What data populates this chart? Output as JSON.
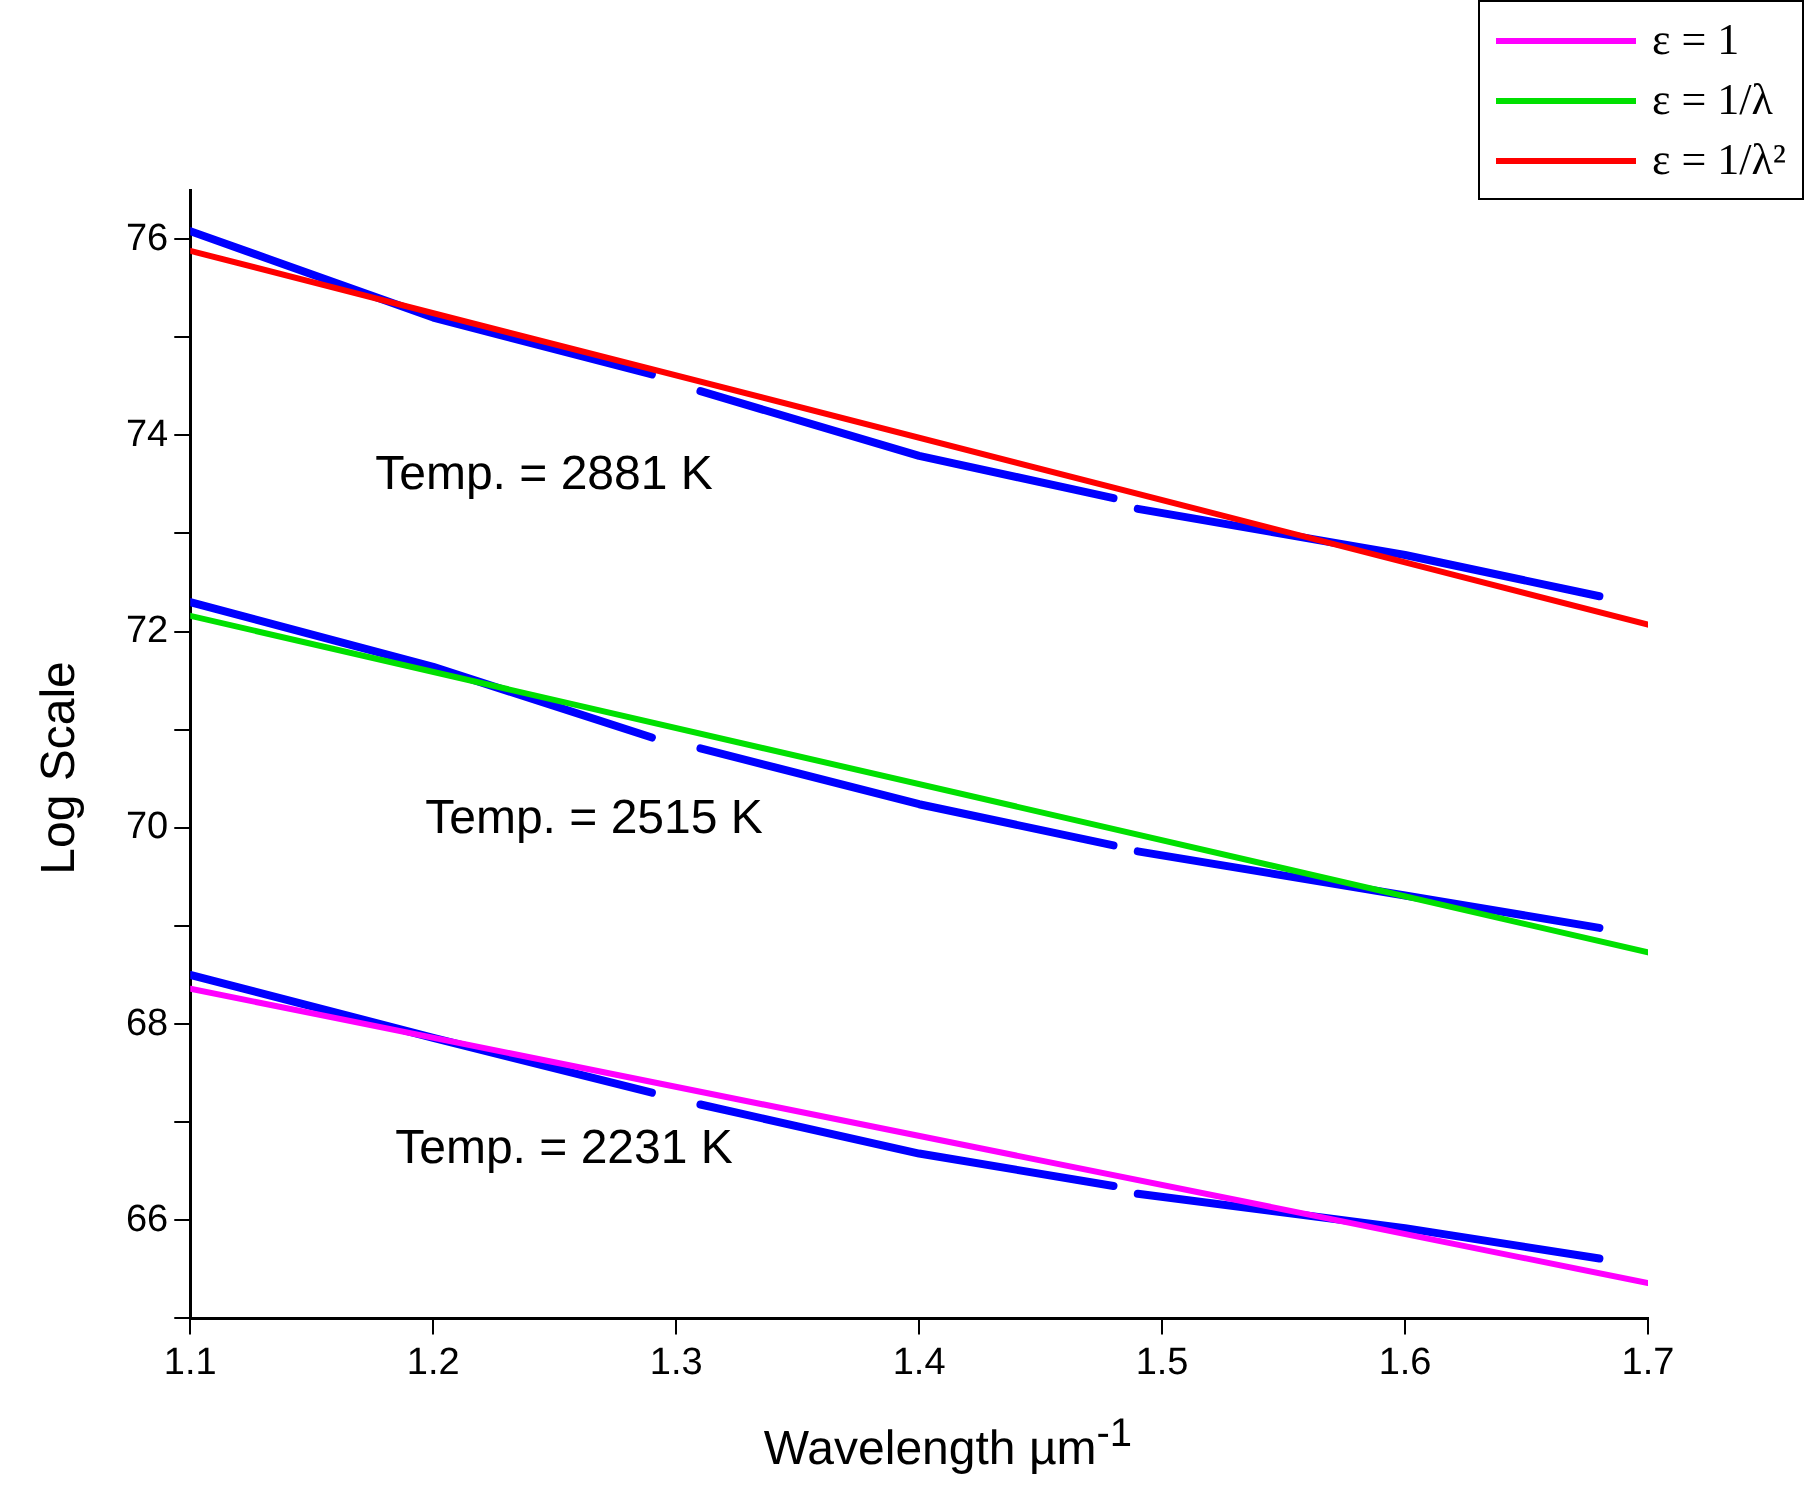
{
  "chart_data": {
    "type": "line",
    "xlabel": "Wavelength µm$^{-1}$",
    "ylabel": "Log Scale",
    "xlim": [
      1.1,
      1.7
    ],
    "xticks": [
      1.1,
      1.2,
      1.3,
      1.4,
      1.5,
      1.6,
      1.7
    ],
    "ylim": [
      65,
      76.5
    ],
    "yticks": [
      {
        "value": 65,
        "label": null
      },
      66,
      {
        "value": 67,
        "label": null
      },
      68,
      {
        "value": 69,
        "label": null
      },
      70,
      {
        "value": 71,
        "label": null
      },
      72,
      {
        "value": 73,
        "label": null
      },
      74,
      {
        "value": 75,
        "label": null
      },
      76
    ],
    "grid": false,
    "legend": "top right",
    "marker": "none",
    "line_style": "solid",
    "series": [
      {
        "name": "ε = 1",
        "color": "#ff00ff",
        "x": [
          1.1,
          1.7
        ],
        "values": [
          68.36,
          65.36
        ]
      },
      {
        "name": "ε = 1/λ",
        "color": "#00e000",
        "x": [
          1.1,
          1.7
        ],
        "values": [
          72.16,
          68.73
        ]
      },
      {
        "name": "ε = 1/λ²",
        "color": "#ff0000",
        "x": [
          1.1,
          1.7
        ],
        "values": [
          75.88,
          72.07
        ]
      },
      {
        "color": "#0000ff",
        "x": [
          1.1,
          1.2,
          1.29,
          1.3,
          1.31,
          1.4,
          1.48,
          1.485,
          1.49,
          1.6,
          1.68
        ],
        "values": [
          76.08,
          75.2,
          74.62,
          null,
          74.45,
          73.79,
          73.36,
          null,
          73.25,
          72.78,
          72.36
        ]
      },
      {
        "color": "#0000ff",
        "x": [
          1.1,
          1.2,
          1.29,
          1.3,
          1.31,
          1.4,
          1.48,
          1.485,
          1.49,
          1.6,
          1.68
        ],
        "values": [
          72.3,
          71.64,
          70.92,
          null,
          70.81,
          70.24,
          69.82,
          null,
          69.76,
          69.31,
          68.98
        ]
      },
      {
        "color": "#0000ff",
        "x": [
          1.1,
          1.2,
          1.29,
          1.3,
          1.31,
          1.4,
          1.48,
          1.485,
          1.49,
          1.6,
          1.68
        ],
        "values": [
          68.5,
          67.86,
          67.3,
          null,
          67.18,
          66.68,
          66.35,
          null,
          66.27,
          65.92,
          65.61
        ]
      }
    ],
    "annotations": [
      "Temp. = 2881 K",
      "Temp. = 2515 K",
      "Temp. = 2231 K"
    ]
  }
}
